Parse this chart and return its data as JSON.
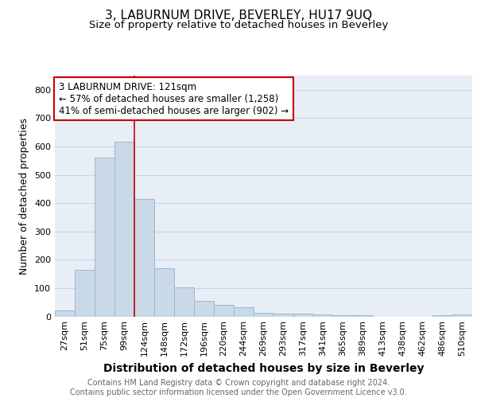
{
  "title": "3, LABURNUM DRIVE, BEVERLEY, HU17 9UQ",
  "subtitle": "Size of property relative to detached houses in Beverley",
  "xlabel": "Distribution of detached houses by size in Beverley",
  "ylabel": "Number of detached properties",
  "bar_labels": [
    "27sqm",
    "51sqm",
    "75sqm",
    "99sqm",
    "124sqm",
    "148sqm",
    "172sqm",
    "196sqm",
    "220sqm",
    "244sqm",
    "269sqm",
    "293sqm",
    "317sqm",
    "341sqm",
    "365sqm",
    "389sqm",
    "413sqm",
    "438sqm",
    "462sqm",
    "486sqm",
    "510sqm"
  ],
  "bar_values": [
    20,
    163,
    560,
    617,
    415,
    170,
    103,
    54,
    42,
    32,
    14,
    10,
    9,
    6,
    5,
    4,
    0,
    0,
    0,
    5,
    6
  ],
  "bar_color": "#c9d9e8",
  "bar_edgecolor": "#9ab8d0",
  "grid_color": "#c8d4e4",
  "bg_color": "#e8eef6",
  "vline_color": "#cc0000",
  "annotation_text": "3 LABURNUM DRIVE: 121sqm\n← 57% of detached houses are smaller (1,258)\n41% of semi-detached houses are larger (902) →",
  "annotation_box_color": "#ffffff",
  "annotation_box_edgecolor": "#cc0000",
  "ylim": [
    0,
    850
  ],
  "yticks": [
    0,
    100,
    200,
    300,
    400,
    500,
    600,
    700,
    800
  ],
  "footer": "Contains HM Land Registry data © Crown copyright and database right 2024.\nContains public sector information licensed under the Open Government Licence v3.0.",
  "title_fontsize": 11,
  "subtitle_fontsize": 9.5,
  "xlabel_fontsize": 10,
  "ylabel_fontsize": 9,
  "tick_fontsize": 8,
  "annotation_fontsize": 8.5,
  "footer_fontsize": 7
}
